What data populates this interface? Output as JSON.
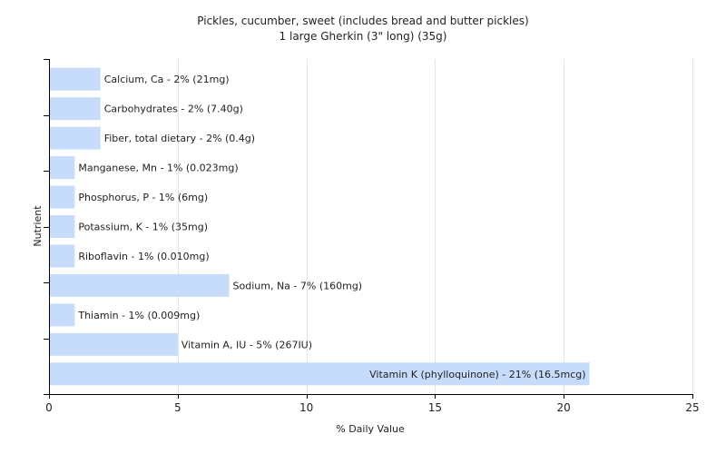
{
  "chart_data": {
    "type": "bar",
    "orientation": "horizontal",
    "title": "Pickles, cucumber, sweet (includes bread and butter pickles)",
    "subtitle": "1 large Gherkin (3\" long) (35g)",
    "xlabel": "% Daily Value",
    "ylabel": "Nutrient",
    "xlim": [
      0,
      25
    ],
    "xticks": [
      "0",
      "5",
      "10",
      "15",
      "20",
      "25"
    ],
    "grid": true,
    "bar_color": "#c6dcfa",
    "categories": [
      "Calcium, Ca",
      "Carbohydrates",
      "Fiber, total dietary",
      "Manganese, Mn",
      "Phosphorus, P",
      "Potassium, K",
      "Riboflavin",
      "Sodium, Na",
      "Thiamin",
      "Vitamin A, IU",
      "Vitamin K (phylloquinone)"
    ],
    "values": [
      2,
      2,
      2,
      1,
      1,
      1,
      1,
      7,
      1,
      5,
      21
    ],
    "labels": [
      "Calcium, Ca - 2% (21mg)",
      "Carbohydrates - 2% (7.40g)",
      "Fiber, total dietary - 2% (0.4g)",
      "Manganese, Mn - 1% (0.023mg)",
      "Phosphorus, P - 1% (6mg)",
      "Potassium, K - 1% (35mg)",
      "Riboflavin - 1% (0.010mg)",
      "Sodium, Na - 7% (160mg)",
      "Thiamin - 1% (0.009mg)",
      "Vitamin A, IU - 5% (267IU)",
      "Vitamin K (phylloquinone) - 21% (16.5mcg)"
    ]
  }
}
